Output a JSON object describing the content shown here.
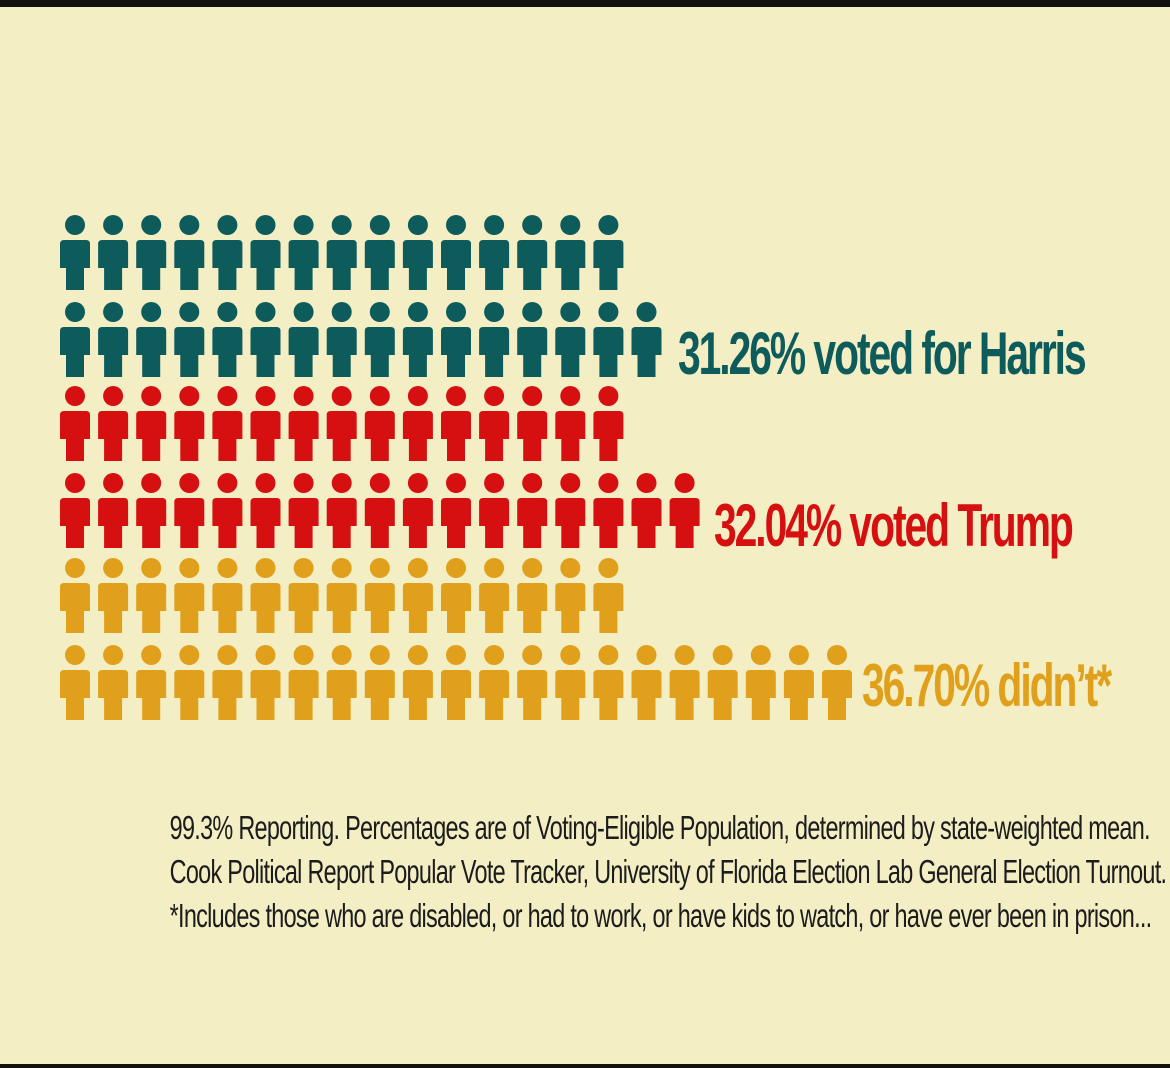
{
  "chart_data": {
    "type": "pictogram",
    "title": "",
    "series": [
      {
        "name": "31.26% voted for Harris",
        "percent": 31.26,
        "icon_rows": [
          15,
          16
        ],
        "color": "#0e5b5b"
      },
      {
        "name": "32.04% voted Trump",
        "percent": 32.04,
        "icon_rows": [
          15,
          17
        ],
        "color": "#d60f10"
      },
      {
        "name": "36.70% didn’t*",
        "percent": 36.7,
        "icon_rows": [
          15,
          21
        ],
        "color": "#e0a01c"
      }
    ],
    "icon": "person-icon"
  },
  "notes": [
    "99.3% Reporting. Percentages are of Voting-Eligible Population, determined by state-weighted mean.",
    "Cook Political Report Popular Vote Tracker, University of Florida Election Lab General Election Turnout.",
    "*Includes those who are disabled, or had to work, or have kids to watch, or have ever been in prison..."
  ],
  "colors": {
    "background": "#f4eec4",
    "text": "#1c1c1c"
  }
}
